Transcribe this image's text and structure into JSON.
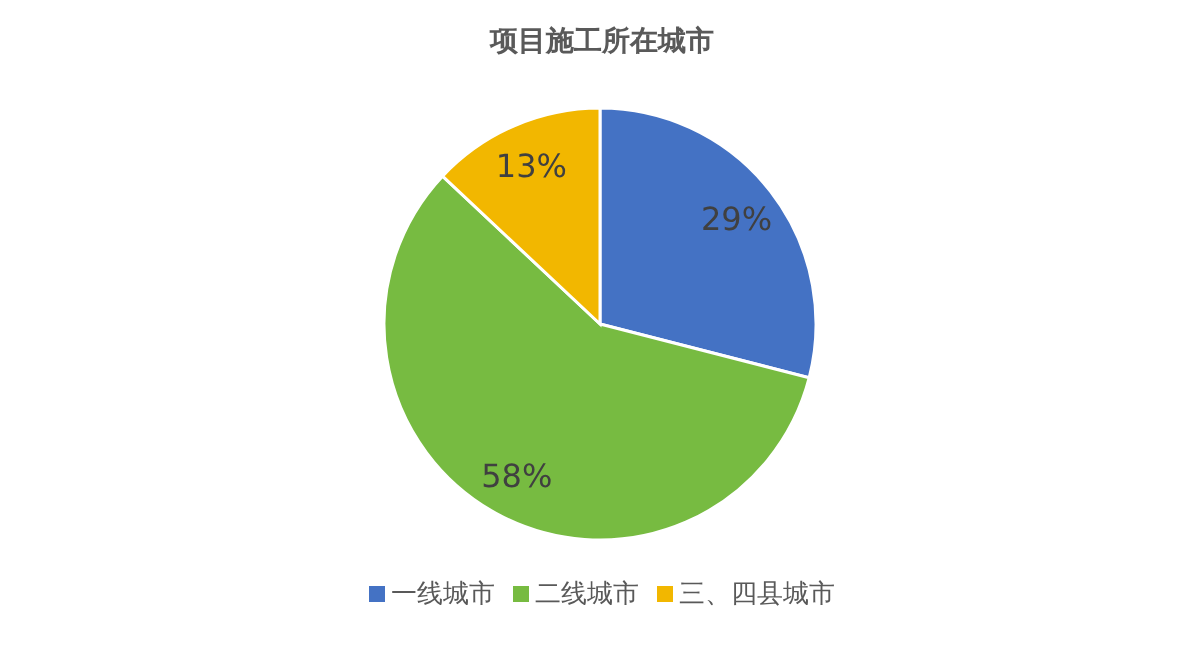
{
  "chart_data": {
    "type": "pie",
    "title": "项目施工所在城市",
    "categories": [
      "一线城市",
      "二线城市",
      "三、四县城市"
    ],
    "values": [
      29,
      58,
      13
    ],
    "value_labels": [
      "29%",
      "58%",
      "13%"
    ],
    "colors": [
      "#4472c4",
      "#77bb41",
      "#f2b700"
    ],
    "legend": "bottom"
  }
}
